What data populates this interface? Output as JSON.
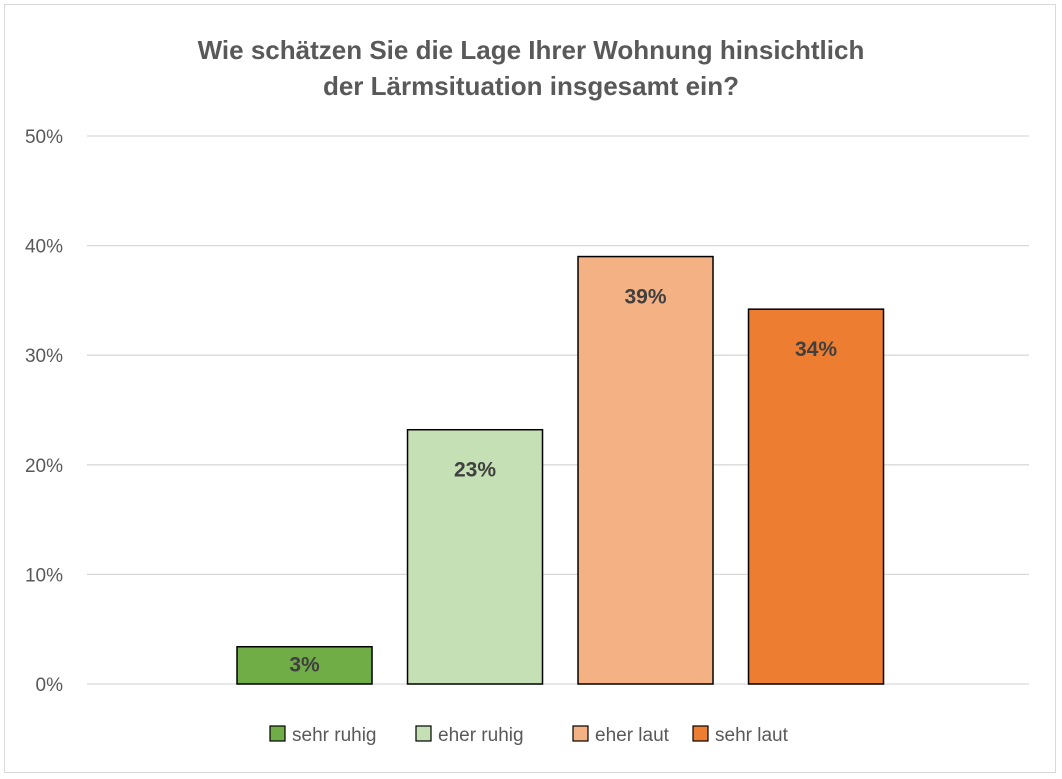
{
  "chart_data": {
    "type": "bar",
    "title": "Wie schätzen Sie die Lage Ihrer Wohnung hinsichtlich der Lärmsituation insgesamt ein?",
    "title_lines": [
      "Wie schätzen Sie die Lage Ihrer Wohnung hinsichtlich",
      "der Lärmsituation insgesamt ein?"
    ],
    "categories": [
      "sehr ruhig",
      "eher ruhig",
      "eher laut",
      "sehr laut"
    ],
    "values": [
      3.4,
      23.2,
      39.0,
      34.2
    ],
    "data_labels": [
      "3%",
      "23%",
      "39%",
      "34%"
    ],
    "colors": [
      "#70ad47",
      "#c5e0b4",
      "#f4b183",
      "#ed7d31"
    ],
    "ylim": [
      0,
      50
    ],
    "yticks": [
      0,
      10,
      20,
      30,
      40,
      50
    ],
    "ytick_labels": [
      "0%",
      "10%",
      "20%",
      "30%",
      "40%",
      "50%"
    ],
    "xlabel": "",
    "ylabel": "",
    "grid": true,
    "legend_position": "bottom"
  }
}
